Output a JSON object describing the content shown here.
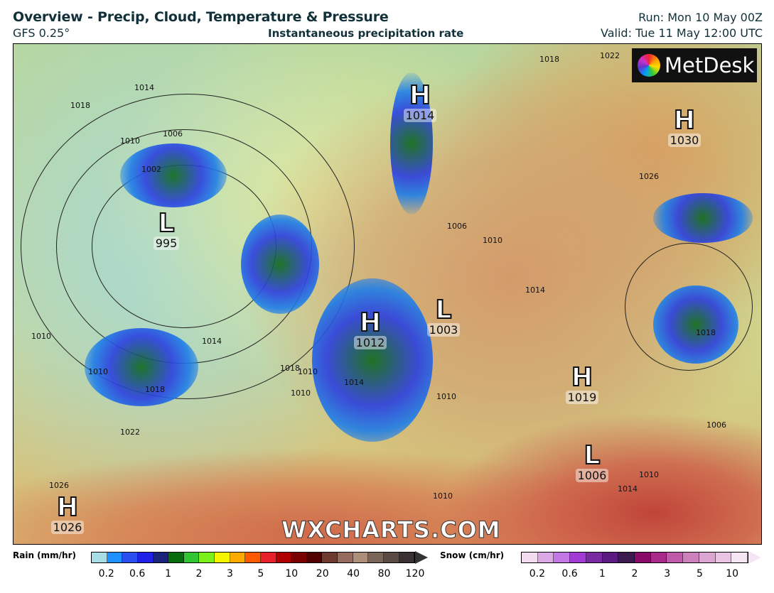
{
  "header": {
    "title": "Overview - Precip, Cloud, Temperature & Pressure",
    "model": "GFS 0.25°",
    "subtitle": "Instantaneous precipitation rate",
    "run": "Run: Mon 10 May 00Z",
    "valid": "Valid: Tue 11 May 12:00 UTC"
  },
  "map": {
    "logo": "MetDesk",
    "watermark": "WXCHARTS.COM",
    "pressure_centers": [
      {
        "type": "H",
        "value": "1014"
      },
      {
        "type": "H",
        "value": "1030"
      },
      {
        "type": "L",
        "value": "995"
      },
      {
        "type": "H",
        "value": "1012"
      },
      {
        "type": "L",
        "value": "1003"
      },
      {
        "type": "H",
        "value": "1019"
      },
      {
        "type": "L",
        "value": "1006"
      },
      {
        "type": "H",
        "value": "1026"
      }
    ],
    "isobar_labels": [
      "1018",
      "1014",
      "1010",
      "1006",
      "1002",
      "1018",
      "1022",
      "1026",
      "1014",
      "1010",
      "1010",
      "1010",
      "1014",
      "1018",
      "1010",
      "1018",
      "1022",
      "1026",
      "1006",
      "1010",
      "1014",
      "1018",
      "1006",
      "1010",
      "1014",
      "1010",
      "1010"
    ]
  },
  "legend": {
    "rain": {
      "label": "Rain (mm/hr)",
      "ticks": [
        "0.2",
        "0.6",
        "1",
        "2",
        "3",
        "5",
        "10",
        "20",
        "40",
        "80",
        "120"
      ],
      "colors": [
        "#a8dde6",
        "#1e90ff",
        "#2a4ff0",
        "#2020e8",
        "#1a237a",
        "#066b0b",
        "#33c433",
        "#7cf01a",
        "#f5f500",
        "#ffaa00",
        "#ff5a00",
        "#e8202a",
        "#b00000",
        "#7a0000",
        "#500000",
        "#6e3a30",
        "#976a5e",
        "#ad8e78",
        "#7a6658",
        "#5a4a44",
        "#3a3232"
      ]
    },
    "snow": {
      "label": "Snow (cm/hr)",
      "ticks": [
        "0.2",
        "0.6",
        "1",
        "2",
        "3",
        "5",
        "10"
      ],
      "colors": [
        "#f3dcef",
        "#dca8e6",
        "#c478e6",
        "#a23ad6",
        "#7a2aa0",
        "#5a1a80",
        "#3c1a50",
        "#8a0a6a",
        "#a82a8a",
        "#c05aa8",
        "#cc80bc",
        "#dca4d0",
        "#e8c4e2",
        "#f6e6f4"
      ]
    }
  }
}
